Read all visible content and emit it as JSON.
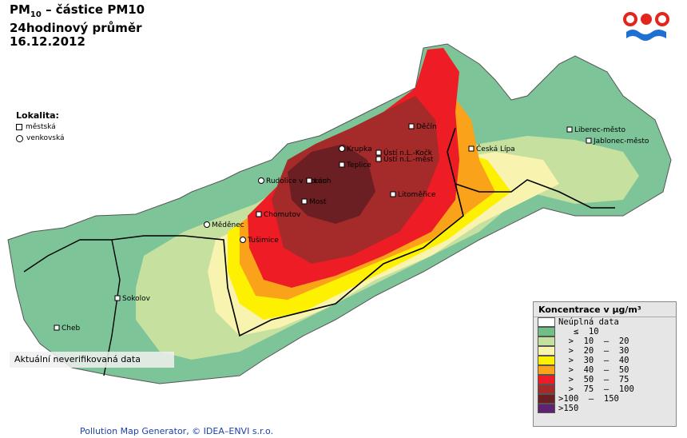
{
  "header": {
    "title_main": "PM",
    "title_sub": "10",
    "title_rest": " – částice PM10",
    "subtitle": "24hodinový průměr",
    "date": "16.12.2012"
  },
  "lokalita": {
    "title": "Lokalita:",
    "urban": "městská",
    "rural": "venkovská"
  },
  "note": "Aktuální neverifikovaná data",
  "footer": "Pollution Map Generator, © IDEA–ENVI s.r.o.",
  "legend": {
    "title": "Koncentrace v µg/m³",
    "items": [
      {
        "label": "Neúplná data",
        "color": "#ffffff"
      },
      {
        "label": "   ≤  10",
        "color": "#6fbf86"
      },
      {
        "label": "  >  10  –  20",
        "color": "#c6e0a0"
      },
      {
        "label": "  >  20  –  30",
        "color": "#f8f4b0"
      },
      {
        "label": "  >  30  –  40",
        "color": "#fdf000"
      },
      {
        "label": "  >  40  –  50",
        "color": "#f9a21a"
      },
      {
        "label": "  >  50  –  75",
        "color": "#ee1c25"
      },
      {
        "label": "  >  75  –  100",
        "color": "#a52a2a"
      },
      {
        "label": ">100  –  150",
        "color": "#6b1f23"
      },
      {
        "label": ">150",
        "color": "#5e2270"
      }
    ]
  },
  "cities": [
    {
      "name": "Děčín",
      "type": "urban"
    },
    {
      "name": "Krupka",
      "type": "rural"
    },
    {
      "name": "Ústí n.L.-Kočk",
      "type": "urban"
    },
    {
      "name": "Ústí n.L.-měst",
      "type": "urban"
    },
    {
      "name": "Teplice",
      "type": "urban"
    },
    {
      "name": "Rudolice v Horách",
      "type": "rural"
    },
    {
      "name": "Lou",
      "type": "urban"
    },
    {
      "name": "Most",
      "type": "urban"
    },
    {
      "name": "Litoměřice",
      "type": "urban"
    },
    {
      "name": "Chomutov",
      "type": "urban"
    },
    {
      "name": "Měděnec",
      "type": "rural"
    },
    {
      "name": "Tušimice",
      "type": "rural"
    },
    {
      "name": "Sokolov",
      "type": "urban"
    },
    {
      "name": "Cheb",
      "type": "urban"
    },
    {
      "name": "Česká Lípa",
      "type": "urban"
    },
    {
      "name": "Liberec-město",
      "type": "urban"
    },
    {
      "name": "Jablonec-město",
      "type": "urban"
    }
  ],
  "colors": {
    "logo_red": "#e2261d",
    "logo_blue": "#1d6fd1"
  }
}
